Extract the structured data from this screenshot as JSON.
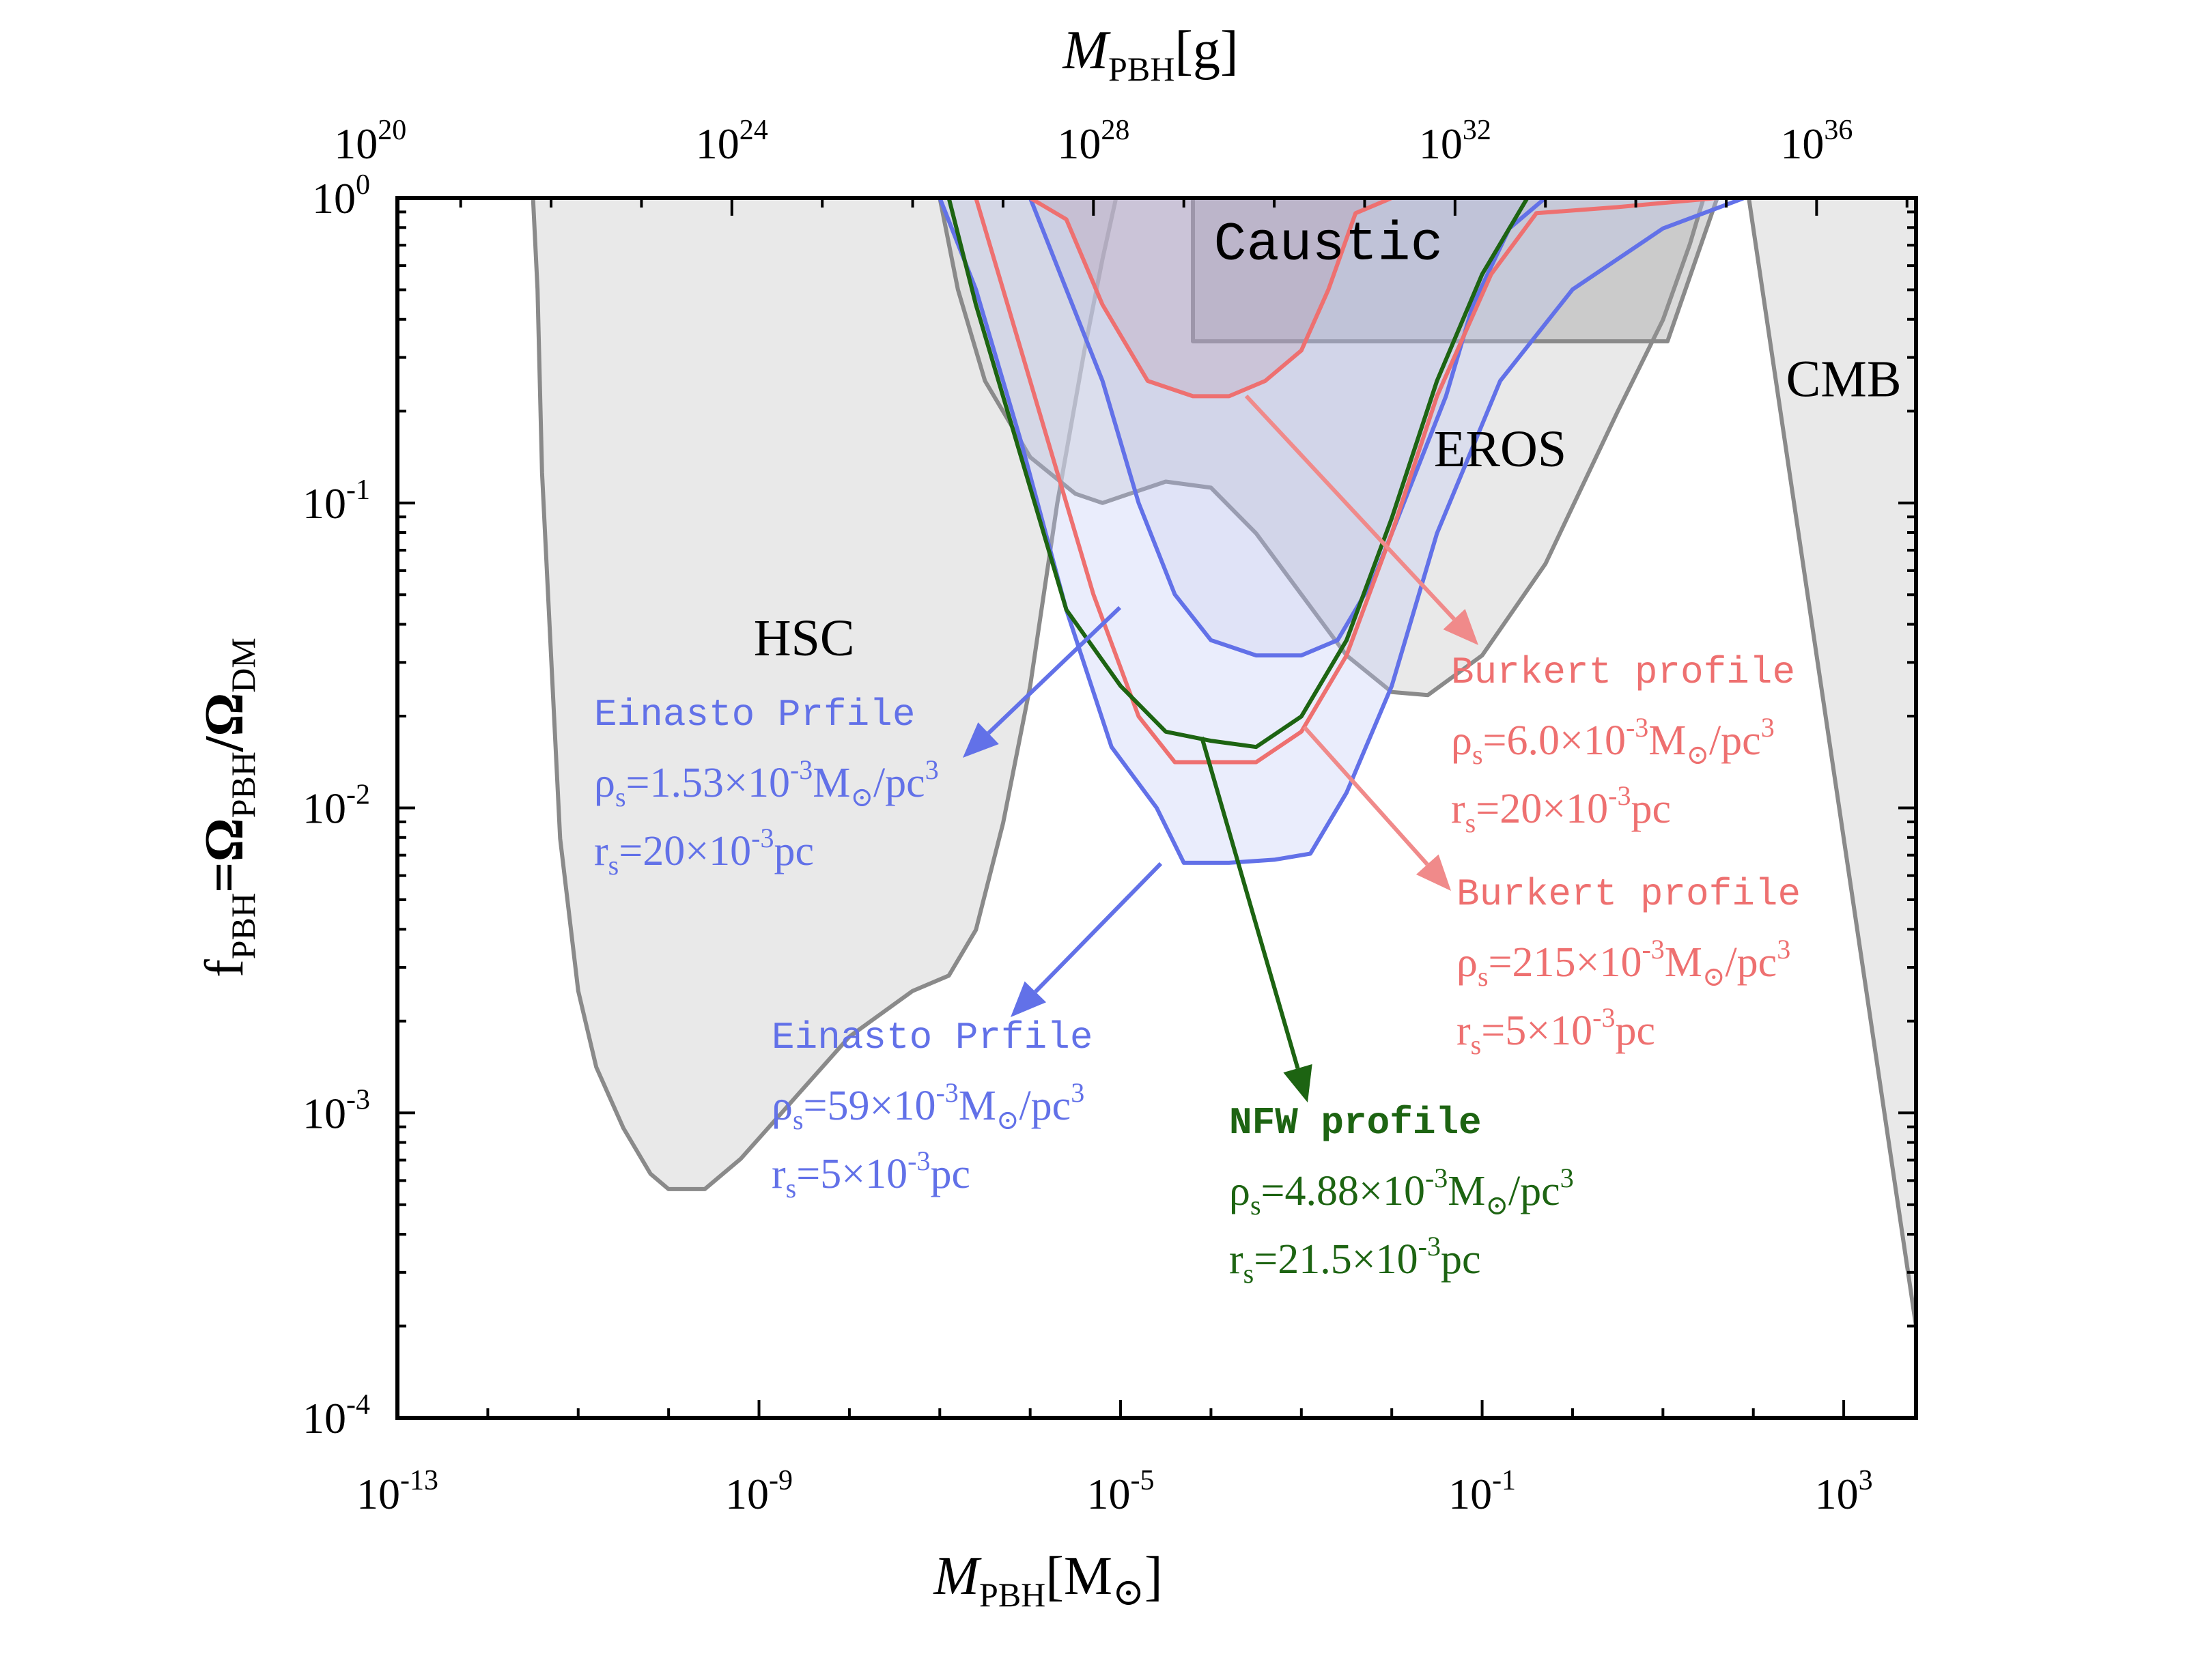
{
  "chart_data": {
    "type": "line",
    "xlog_range": [
      -13,
      3.8
    ],
    "ylog_range": [
      -4,
      0
    ],
    "top_axis_offset_dex": 33.3,
    "bottom_axis": {
      "label_main": "M",
      "label_sub": "PBH",
      "label_unit": "[M",
      "label_unit_sub": "⊙",
      "label_close": "]",
      "ticks": [
        {
          "x": -13,
          "base": "10",
          "exp": "-13"
        },
        {
          "x": -9,
          "base": "10",
          "exp": "-9"
        },
        {
          "x": -5,
          "base": "10",
          "exp": "-5"
        },
        {
          "x": -1,
          "base": "10",
          "exp": "-1"
        },
        {
          "x": 3,
          "base": "10",
          "exp": "3"
        }
      ]
    },
    "top_axis": {
      "label_main": "M",
      "label_sub": "PBH",
      "label_unit": "[g]",
      "ticks": [
        {
          "g": 20,
          "base": "10",
          "exp": "20"
        },
        {
          "g": 24,
          "base": "10",
          "exp": "24"
        },
        {
          "g": 28,
          "base": "10",
          "exp": "28"
        },
        {
          "g": 32,
          "base": "10",
          "exp": "32"
        },
        {
          "g": 36,
          "base": "10",
          "exp": "36"
        }
      ]
    },
    "left_axis": {
      "label_parts": [
        {
          "t": "f",
          "sub": "PBH"
        },
        {
          "t": "=Ω",
          "sub": "PBH"
        },
        {
          "t": "/Ω",
          "sub": "DM"
        }
      ],
      "ticks": [
        {
          "y": 0,
          "base": "10",
          "exp": "0"
        },
        {
          "y": -1,
          "base": "10",
          "exp": "-1"
        },
        {
          "y": -2,
          "base": "10",
          "exp": "-2"
        },
        {
          "y": -3,
          "base": "10",
          "exp": "-3"
        },
        {
          "y": -4,
          "base": "10",
          "exp": "-4"
        }
      ]
    },
    "constraints": [
      {
        "name": "HSC",
        "label": "HSC",
        "label_at": [
          -8.5,
          -1.5
        ],
        "points": [
          [
            -11.5,
            0
          ],
          [
            -11.45,
            -0.3
          ],
          [
            -11.4,
            -0.9
          ],
          [
            -11.3,
            -1.5
          ],
          [
            -11.2,
            -2.1
          ],
          [
            -11.0,
            -2.6
          ],
          [
            -10.8,
            -2.85
          ],
          [
            -10.5,
            -3.05
          ],
          [
            -10.2,
            -3.2
          ],
          [
            -10.0,
            -3.25
          ],
          [
            -9.6,
            -3.25
          ],
          [
            -9.2,
            -3.15
          ],
          [
            -8.6,
            -2.95
          ],
          [
            -8.0,
            -2.75
          ],
          [
            -7.3,
            -2.6
          ],
          [
            -6.9,
            -2.55
          ],
          [
            -6.6,
            -2.4
          ],
          [
            -6.3,
            -2.05
          ],
          [
            -6.0,
            -1.6
          ],
          [
            -5.7,
            -1.0
          ],
          [
            -5.4,
            -0.5
          ],
          [
            -5.2,
            -0.2
          ],
          [
            -5.05,
            0
          ]
        ]
      },
      {
        "name": "EROS",
        "label": "EROS",
        "label_at": [
          -0.8,
          -0.88
        ],
        "points": [
          [
            -7.0,
            0
          ],
          [
            -6.8,
            -0.3
          ],
          [
            -6.5,
            -0.6
          ],
          [
            -6.0,
            -0.85
          ],
          [
            -5.5,
            -0.97
          ],
          [
            -5.2,
            -1.0
          ],
          [
            -4.9,
            -0.97
          ],
          [
            -4.5,
            -0.93
          ],
          [
            -4.0,
            -0.95
          ],
          [
            -3.5,
            -1.1
          ],
          [
            -3.0,
            -1.3
          ],
          [
            -2.5,
            -1.5
          ],
          [
            -2.0,
            -1.62
          ],
          [
            -1.6,
            -1.63
          ],
          [
            -1.0,
            -1.5
          ],
          [
            -0.3,
            -1.2
          ],
          [
            0.5,
            -0.7
          ],
          [
            1.0,
            -0.4
          ],
          [
            1.3,
            -0.15
          ],
          [
            1.45,
            0
          ]
        ]
      },
      {
        "name": "Caustic",
        "label": "Caustic",
        "label_at": [
          -2.7,
          -0.2
        ],
        "points": [
          [
            -4.2,
            0
          ],
          [
            -4.2,
            -0.47
          ],
          [
            1.05,
            -0.47
          ],
          [
            1.6,
            0
          ]
        ]
      },
      {
        "name": "CMB",
        "label": "CMB",
        "label_at": [
          3.0,
          -0.65
        ],
        "points": [
          [
            1.95,
            0
          ],
          [
            3.8,
            -3.7
          ],
          [
            3.8,
            0
          ]
        ]
      }
    ],
    "series": [
      {
        "name": "Einasto rho_s=1.53e-3, r_s=20e-3",
        "color": "#6271e8",
        "fill": "rgba(128,128,200,0.12)",
        "points": [
          [
            -6.0,
            0
          ],
          [
            -5.6,
            -0.3
          ],
          [
            -5.2,
            -0.6
          ],
          [
            -4.8,
            -1.0
          ],
          [
            -4.4,
            -1.3
          ],
          [
            -4.0,
            -1.45
          ],
          [
            -3.5,
            -1.5
          ],
          [
            -3.0,
            -1.5
          ],
          [
            -2.6,
            -1.45
          ],
          [
            -2.2,
            -1.25
          ],
          [
            -1.8,
            -0.95
          ],
          [
            -1.4,
            -0.65
          ],
          [
            -1.1,
            -0.35
          ],
          [
            -0.7,
            -0.1
          ],
          [
            -0.3,
            0
          ]
        ]
      },
      {
        "name": "Einasto rho_s=59e-3, r_s=5e-3",
        "color": "#6271e8",
        "fill": "rgba(190,200,245,0.32)",
        "points": [
          [
            -7.0,
            0
          ],
          [
            -6.6,
            -0.3
          ],
          [
            -6.1,
            -0.8
          ],
          [
            -5.6,
            -1.35
          ],
          [
            -5.1,
            -1.8
          ],
          [
            -4.6,
            -2.0
          ],
          [
            -4.3,
            -2.18
          ],
          [
            -3.8,
            -2.18
          ],
          [
            -3.3,
            -2.17
          ],
          [
            -2.9,
            -2.15
          ],
          [
            -2.5,
            -1.95
          ],
          [
            -2.0,
            -1.6
          ],
          [
            -1.5,
            -1.1
          ],
          [
            -0.8,
            -0.6
          ],
          [
            0.0,
            -0.3
          ],
          [
            1.0,
            -0.1
          ],
          [
            1.9,
            0
          ]
        ]
      },
      {
        "name": "Burkert rho_s=6.0e-3, r_s=20e-3",
        "color": "#ee7070",
        "fill": "rgba(170,120,140,0.18)",
        "points": [
          [
            -9.0,
            0
          ],
          [
            -6.0,
            0
          ],
          [
            -5.6,
            -0.07
          ],
          [
            -5.2,
            -0.35
          ],
          [
            -4.7,
            -0.6
          ],
          [
            -4.2,
            -0.65
          ],
          [
            -3.8,
            -0.65
          ],
          [
            -3.4,
            -0.6
          ],
          [
            -3.0,
            -0.5
          ],
          [
            -2.7,
            -0.3
          ],
          [
            -2.4,
            -0.05
          ],
          [
            -2.0,
            0
          ],
          [
            1.5,
            0
          ]
        ]
      },
      {
        "name": "Burkert rho_s=215e-3, r_s=5e-3",
        "color": "#ee7070",
        "fill": "none",
        "points": [
          [
            -6.6,
            0
          ],
          [
            -6.3,
            -0.3
          ],
          [
            -5.8,
            -0.8
          ],
          [
            -5.3,
            -1.3
          ],
          [
            -4.8,
            -1.7
          ],
          [
            -4.4,
            -1.85
          ],
          [
            -4.0,
            -1.85
          ],
          [
            -3.5,
            -1.85
          ],
          [
            -3.0,
            -1.75
          ],
          [
            -2.5,
            -1.5
          ],
          [
            -2.0,
            -1.1
          ],
          [
            -1.5,
            -0.65
          ],
          [
            -0.9,
            -0.25
          ],
          [
            -0.4,
            -0.05
          ],
          [
            0.5,
            -0.03
          ],
          [
            1.6,
            0
          ]
        ]
      },
      {
        "name": "NFW rho_s=4.88e-3, r_s=21.5e-3",
        "color": "#1d6412",
        "fill": "none",
        "points": [
          [
            -6.9,
            0
          ],
          [
            -6.6,
            -0.35
          ],
          [
            -6.1,
            -0.85
          ],
          [
            -5.6,
            -1.35
          ],
          [
            -5.0,
            -1.6
          ],
          [
            -4.5,
            -1.75
          ],
          [
            -4.0,
            -1.78
          ],
          [
            -3.5,
            -1.8
          ],
          [
            -3.0,
            -1.7
          ],
          [
            -2.5,
            -1.45
          ],
          [
            -2.0,
            -1.05
          ],
          [
            -1.5,
            -0.6
          ],
          [
            -1.0,
            -0.25
          ],
          [
            -0.5,
            0
          ]
        ]
      }
    ],
    "annotations": [
      {
        "id": "einasto1",
        "color": "#6271e8",
        "title": "Einasto Prfile",
        "rho_pre": "ρ",
        "rho_sub": "s",
        "rho_val": "=1.53×10",
        "rho_exp": "-3",
        "rho_unit": "M",
        "rho_unit_sub": "⊙",
        "rho_tail": "/pc",
        "rho_tail_exp": "3",
        "r_pre": "r",
        "r_sub": "s",
        "r_val": "=20×10",
        "r_exp": "-3",
        "r_unit": "pc"
      },
      {
        "id": "einasto2",
        "color": "#6271e8",
        "title": "Einasto Prfile",
        "rho_pre": "ρ",
        "rho_sub": "s",
        "rho_val": "=59×10",
        "rho_exp": "-3",
        "rho_unit": "M",
        "rho_unit_sub": "⊙",
        "rho_tail": "/pc",
        "rho_tail_exp": "3",
        "r_pre": "r",
        "r_sub": "s",
        "r_val": "=5×10",
        "r_exp": "-3",
        "r_unit": "pc"
      },
      {
        "id": "burkert1",
        "color": "#ee7070",
        "title": "Burkert profile",
        "rho_pre": "ρ",
        "rho_sub": "s",
        "rho_val": "=6.0×10",
        "rho_exp": "-3",
        "rho_unit": "M",
        "rho_unit_sub": "⊙",
        "rho_tail": "/pc",
        "rho_tail_exp": "3",
        "r_pre": "r",
        "r_sub": "s",
        "r_val": "=20×10",
        "r_exp": "-3",
        "r_unit": "pc"
      },
      {
        "id": "burkert2",
        "color": "#ee7070",
        "title": "Burkert profile",
        "rho_pre": "ρ",
        "rho_sub": "s",
        "rho_val": "=215×10",
        "rho_exp": "-3",
        "rho_unit": "M",
        "rho_unit_sub": "⊙",
        "rho_tail": "/pc",
        "rho_tail_exp": "3",
        "r_pre": "r",
        "r_sub": "s",
        "r_val": "=5×10",
        "r_exp": "-3",
        "r_unit": "pc"
      },
      {
        "id": "nfw",
        "color": "#1d6412",
        "title": "NFW profile",
        "rho_pre": "ρ",
        "rho_sub": "s",
        "rho_val": "=4.88×10",
        "rho_exp": "-3",
        "rho_unit": "M",
        "rho_unit_sub": "⊙",
        "rho_tail": "/pc",
        "rho_tail_exp": "3",
        "r_pre": "r",
        "r_sub": "s",
        "r_val": "=21.5×10",
        "r_exp": "-3",
        "r_unit": "pc"
      }
    ]
  }
}
